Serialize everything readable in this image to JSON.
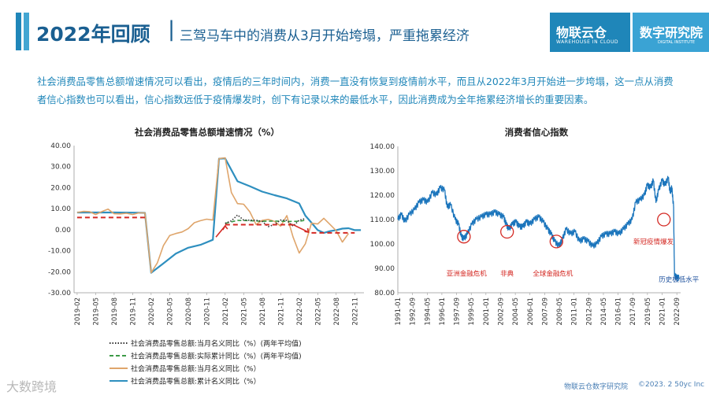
{
  "header": {
    "title": "2022年回顾",
    "separator": "|",
    "subtitle": "三驾马车中的消费从3月开始垮塌，严重拖累经济"
  },
  "logo": {
    "brand_cn": "物联云仓",
    "brand_en": "WAREHOUSE IN CLOUD",
    "institute_cn": "数字研究院",
    "institute_en": "DIGITAL INSTITUTE"
  },
  "intro_text": "社会消费品零售总额增速情况可以看出，疫情后的三年时间内，消费一直没有恢复到疫情前水平，而且从2022年3月开始进一步垮塌，这一点从消费者信心指数也可以看出，信心指数远低于疫情爆发时，创下有记录以来的最低水平，因此消费成为全年拖累经济增长的重要因素。",
  "footer": {
    "source": "物联云仓数字研究院",
    "copyright": "©2023. 2 50yc Inc",
    "watermark": "大数跨境"
  },
  "colors": {
    "blue": "#2e8fbf",
    "orange": "#dfa56b",
    "green": "#3c9a46",
    "dark": "#333333",
    "red": "#d42a24",
    "consumer_line": "#1b75bc"
  },
  "chart_data": [
    {
      "type": "line",
      "title": "社会消费品零售总额增速情况（%）",
      "ylim": [
        -30,
        40
      ],
      "yticks": [
        "40.00",
        "30.00",
        "20.00",
        "10.00",
        "0.00",
        "-10.00",
        "-20.00",
        "-30.00"
      ],
      "xticks": [
        "2019-02",
        "2019-05",
        "2019-08",
        "2019-11",
        "2020-02",
        "2020-05",
        "2020-08",
        "2020-11",
        "2021-02",
        "2021-05",
        "2021-08",
        "2021-11",
        "2022-02",
        "2022-05",
        "2022-08",
        "2022-11"
      ],
      "series": [
        {
          "name": "社会消费品零售总额:当月名义同比（%）(两年平均值)",
          "style": "dotted",
          "color": "#333333",
          "points": [
            [
              24,
              3
            ],
            [
              25,
              4.2
            ],
            [
              26,
              7
            ],
            [
              27,
              4.6
            ],
            [
              28,
              4.5
            ],
            [
              29,
              4.5
            ],
            [
              30,
              3.9
            ],
            [
              31,
              1.5
            ],
            [
              32,
              2.5
            ],
            [
              33,
              4.6
            ],
            [
              34,
              4.4
            ],
            [
              35,
              1.7
            ],
            [
              36,
              4.5
            ],
            [
              37,
              5.3
            ]
          ]
        },
        {
          "name": "社会消费品零售总额:实际累计同比（%）(两年平均值)",
          "style": "dashed",
          "color": "#3c9a46",
          "points": [
            [
              24,
              3.0
            ],
            [
              26,
              4.4
            ],
            [
              28,
              4.3
            ],
            [
              30,
              4.0
            ],
            [
              32,
              4.1
            ],
            [
              34,
              3.9
            ],
            [
              36,
              4.0
            ],
            [
              37,
              4.5
            ]
          ]
        },
        {
          "name": "社会消费品零售总额:当月名义同比（%）",
          "style": "solid",
          "color": "#dfa56b",
          "points": [
            [
              0,
              8.2
            ],
            [
              1,
              8.7
            ],
            [
              2,
              8.6
            ],
            [
              3,
              7.2
            ],
            [
              4,
              8.6
            ],
            [
              5,
              9.8
            ],
            [
              6,
              7.6
            ],
            [
              7,
              7.5
            ],
            [
              8,
              7.8
            ],
            [
              9,
              7.2
            ],
            [
              10,
              8.0
            ],
            [
              11,
              8.0
            ],
            [
              12,
              -20.5
            ],
            [
              13,
              -15.8
            ],
            [
              14,
              -7.5
            ],
            [
              15,
              -2.8
            ],
            [
              16,
              -1.8
            ],
            [
              17,
              -1.1
            ],
            [
              18,
              0.5
            ],
            [
              19,
              3.3
            ],
            [
              20,
              4.3
            ],
            [
              21,
              5.0
            ],
            [
              22,
              4.6
            ],
            [
              23,
              33.8
            ],
            [
              24,
              34.2
            ],
            [
              25,
              17.7
            ],
            [
              26,
              12.4
            ],
            [
              27,
              12.1
            ],
            [
              28,
              8.5
            ],
            [
              29,
              2.5
            ],
            [
              30,
              4.4
            ],
            [
              31,
              4.9
            ],
            [
              32,
              3.9
            ],
            [
              33,
              1.7
            ],
            [
              34,
              6.7
            ],
            [
              35,
              -3.5
            ],
            [
              36,
              -11.1
            ],
            [
              37,
              -6.7
            ],
            [
              38,
              3.1
            ],
            [
              39,
              2.7
            ],
            [
              40,
              5.4
            ],
            [
              41,
              2.5
            ],
            [
              42,
              -0.5
            ],
            [
              43,
              -5.9
            ],
            [
              44,
              -1.8
            ]
          ]
        },
        {
          "name": "社会消费品零售总额:累计名义同比（%）",
          "style": "solid",
          "color": "#2e8fbf",
          "points": [
            [
              0,
              8.2
            ],
            [
              3,
              8.2
            ],
            [
              6,
              8.2
            ],
            [
              9,
              8.1
            ],
            [
              11,
              8.0
            ],
            [
              12,
              -20.5
            ],
            [
              14,
              -16
            ],
            [
              16,
              -11.4
            ],
            [
              18,
              -8.6
            ],
            [
              20,
              -7.2
            ],
            [
              22,
              -4.8
            ],
            [
              23,
              33.8
            ],
            [
              24,
              33.9
            ],
            [
              26,
              23.0
            ],
            [
              28,
              20.7
            ],
            [
              30,
              18.1
            ],
            [
              32,
              16.4
            ],
            [
              34,
              14.9
            ],
            [
              36,
              12.5
            ],
            [
              37,
              6.7
            ],
            [
              38,
              3.3
            ],
            [
              39,
              -0.2
            ],
            [
              40,
              -1.5
            ],
            [
              41,
              -0.7
            ],
            [
              42,
              -0.2
            ],
            [
              43,
              0.5
            ],
            [
              44,
              0.7
            ],
            [
              45,
              -0.2
            ],
            [
              46,
              -0.2
            ]
          ]
        }
      ],
      "annotations": [
        "red dashed trend line",
        "red arrows"
      ]
    },
    {
      "type": "line",
      "title": "消费者信心指数",
      "ylim": [
        80,
        140
      ],
      "yticks": [
        "140.00",
        "130.00",
        "120.00",
        "110.00",
        "100.00",
        "90.00",
        "80.00"
      ],
      "xticks": [
        "1991-01",
        "1992-09",
        "1994-05",
        "1996-01",
        "1997-09",
        "1999-05",
        "2001-01",
        "2002-09",
        "2004-05",
        "2006-01",
        "2007-09",
        "2009-05",
        "2011-01",
        "2012-09",
        "2014-05",
        "2016-01",
        "2017-09",
        "2019-05",
        "2021-01",
        "2022-09"
      ],
      "x_start_year": 1991,
      "series": [
        {
          "name": "消费者信心指数",
          "color": "#1b75bc",
          "points": [
            [
              1991,
              110
            ],
            [
              1991.4,
              112
            ],
            [
              1991.8,
              109
            ],
            [
              1992.3,
              112
            ],
            [
              1992.9,
              114
            ],
            [
              1993.4,
              117
            ],
            [
              1993.9,
              118
            ],
            [
              1994.4,
              117
            ],
            [
              1994.9,
              121
            ],
            [
              1995.4,
              120
            ],
            [
              1995.8,
              123
            ],
            [
              1996.3,
              122
            ],
            [
              1996.6,
              115
            ],
            [
              1997.0,
              116
            ],
            [
              1997.5,
              110
            ],
            [
              1997.9,
              108
            ],
            [
              1998.2,
              103
            ],
            [
              1998.5,
              102
            ],
            [
              1998.9,
              104
            ],
            [
              1999.4,
              108
            ],
            [
              1999.9,
              110
            ],
            [
              2000.5,
              111
            ],
            [
              2001.0,
              112
            ],
            [
              2001.5,
              112
            ],
            [
              2002.0,
              113
            ],
            [
              2002.5,
              112
            ],
            [
              2003.0,
              111
            ],
            [
              2003.3,
              108
            ],
            [
              2003.6,
              106
            ],
            [
              2004.0,
              108
            ],
            [
              2004.4,
              109
            ],
            [
              2004.8,
              107
            ],
            [
              2005.2,
              107
            ],
            [
              2005.6,
              109
            ],
            [
              2006.0,
              108
            ],
            [
              2006.5,
              110
            ],
            [
              2007.0,
              111
            ],
            [
              2007.5,
              109
            ],
            [
              2008.0,
              106
            ],
            [
              2008.4,
              104
            ],
            [
              2008.8,
              101
            ],
            [
              2009.3,
              99
            ],
            [
              2009.7,
              102
            ],
            [
              2010.1,
              106
            ],
            [
              2010.6,
              104
            ],
            [
              2011.1,
              105
            ],
            [
              2011.6,
              101
            ],
            [
              2012.1,
              102
            ],
            [
              2012.6,
              101
            ],
            [
              2013.1,
              99
            ],
            [
              2013.6,
              100
            ],
            [
              2014.1,
              103
            ],
            [
              2014.6,
              104
            ],
            [
              2015.1,
              104
            ],
            [
              2015.6,
              105
            ],
            [
              2016.1,
              104
            ],
            [
              2016.6,
              106
            ],
            [
              2017.1,
              108
            ],
            [
              2017.6,
              110
            ],
            [
              2018.0,
              117
            ],
            [
              2018.5,
              118
            ],
            [
              2019.0,
              120
            ],
            [
              2019.3,
              124
            ],
            [
              2019.7,
              123
            ],
            [
              2020.0,
              126
            ],
            [
              2020.3,
              117
            ],
            [
              2020.6,
              122
            ],
            [
              2021.0,
              126
            ],
            [
              2021.3,
              124
            ],
            [
              2021.7,
              127
            ],
            [
              2021.9,
              121
            ],
            [
              2022.1,
              123
            ],
            [
              2022.3,
              115
            ],
            [
              2022.4,
              87
            ],
            [
              2022.7,
              86
            ],
            [
              2022.9,
              86
            ]
          ]
        }
      ],
      "annotations": [
        "亚洲金融危机",
        "非典",
        "全球金融危机",
        "新冠疫情爆发",
        "历史极低水平"
      ]
    }
  ],
  "legend": [
    {
      "label": "社会消费品零售总额:当月名义同比（%）(两年平均值)",
      "style": "dotted",
      "color": "#333333"
    },
    {
      "label": "社会消费品零售总额:实际累计同比（%）(两年平均值)",
      "style": "dashed",
      "color": "#3c9a46"
    },
    {
      "label": "社会消费品零售总额:当月名义同比（%）",
      "style": "solid",
      "color": "#dfa56b"
    },
    {
      "label": "社会消费品零售总额:累计名义同比（%）",
      "style": "solid",
      "color": "#2e8fbf"
    }
  ]
}
